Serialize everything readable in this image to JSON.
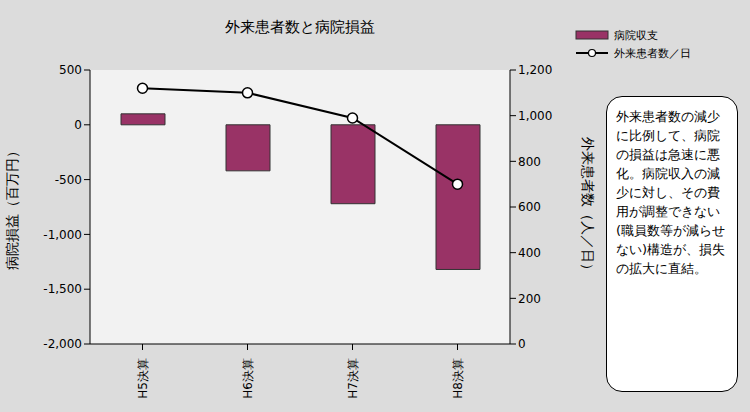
{
  "chart_data": {
    "type": "bar",
    "title": "外来患者数と病院損益",
    "categories": [
      "H5決算",
      "H6決算",
      "H7決算",
      "H8決算"
    ],
    "series": [
      {
        "name": "病院収支",
        "type": "bar",
        "color": "#993366",
        "values": [
          100,
          -420,
          -720,
          -1320
        ]
      },
      {
        "name": "外来患者数／日",
        "type": "line",
        "color": "#000000",
        "marker": "circle",
        "axis": "y2",
        "values": [
          1120,
          1100,
          990,
          700
        ]
      }
    ],
    "y_label": "病院損益（百万円）",
    "y2_label": "外来患者数（人／日）",
    "ylim": [
      -2000,
      500
    ],
    "yticks": [
      {
        "value": -2000,
        "label": "-2,000"
      },
      {
        "value": -1500,
        "label": "-1,500"
      },
      {
        "value": -1000,
        "label": "-1,000"
      },
      -500,
      0,
      500
    ],
    "y2lim": [
      0,
      1200
    ],
    "y2ticks": [
      0,
      200,
      400,
      600,
      800,
      {
        "value": 1000,
        "label": "1,000"
      },
      {
        "value": 1200,
        "label": "1,200"
      }
    ],
    "grid": false,
    "legend": "top right",
    "annotation": "外来患者数の減少に比例して、病院の損益は急速に悪化。病院収入の減少に対し、その費用が調整できない(職員数等が減らせない)構造が、損失の拡大に直結。"
  }
}
